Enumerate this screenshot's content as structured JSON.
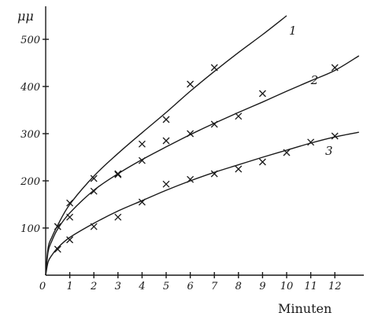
{
  "chart_data": {
    "type": "scatter",
    "title": "",
    "xlabel": "Minuten",
    "ylabel": "μμ",
    "xlim": [
      0,
      13.3
    ],
    "ylim": [
      0,
      560
    ],
    "x_ticks": [
      0,
      1,
      2,
      3,
      4,
      5,
      6,
      7,
      8,
      9,
      10,
      11,
      12
    ],
    "y_ticks": [
      100,
      200,
      300,
      400,
      500
    ],
    "series": [
      {
        "name": "1",
        "points": [
          [
            0.5,
            103
          ],
          [
            1,
            153
          ],
          [
            2,
            205
          ],
          [
            3,
            215
          ],
          [
            4,
            278
          ],
          [
            5,
            330
          ],
          [
            6,
            405
          ],
          [
            7,
            440
          ]
        ],
        "curve": [
          [
            0,
            0
          ],
          [
            0.1,
            58
          ],
          [
            0.25,
            80
          ],
          [
            0.5,
            106
          ],
          [
            1,
            150
          ],
          [
            2,
            210
          ],
          [
            3,
            258
          ],
          [
            4,
            302
          ],
          [
            5,
            345
          ],
          [
            6,
            390
          ],
          [
            7,
            432
          ],
          [
            8,
            472
          ],
          [
            9,
            510
          ],
          [
            10,
            550
          ]
        ]
      },
      {
        "name": "2",
        "points": [
          [
            0.5,
            103
          ],
          [
            1,
            123
          ],
          [
            2,
            178
          ],
          [
            3,
            213
          ],
          [
            4,
            243
          ],
          [
            5,
            285
          ],
          [
            6,
            300
          ],
          [
            7,
            320
          ],
          [
            8,
            337
          ],
          [
            9,
            385
          ],
          [
            12,
            440
          ]
        ],
        "curve": [
          [
            0,
            0
          ],
          [
            0.1,
            50
          ],
          [
            0.25,
            72
          ],
          [
            0.5,
            98
          ],
          [
            1,
            132
          ],
          [
            2,
            180
          ],
          [
            3,
            215
          ],
          [
            4,
            245
          ],
          [
            5,
            272
          ],
          [
            6,
            298
          ],
          [
            7,
            322
          ],
          [
            8,
            345
          ],
          [
            9,
            367
          ],
          [
            10,
            390
          ],
          [
            11,
            412
          ],
          [
            12,
            434
          ],
          [
            13,
            465
          ]
        ]
      },
      {
        "name": "3",
        "points": [
          [
            0.5,
            55
          ],
          [
            1,
            75
          ],
          [
            2,
            103
          ],
          [
            3,
            123
          ],
          [
            4,
            155
          ],
          [
            5,
            193
          ],
          [
            6,
            203
          ],
          [
            7,
            215
          ],
          [
            8,
            225
          ],
          [
            9,
            240
          ],
          [
            10,
            260
          ],
          [
            11,
            282
          ],
          [
            12,
            295
          ]
        ],
        "curve": [
          [
            0,
            0
          ],
          [
            0.1,
            28
          ],
          [
            0.25,
            42
          ],
          [
            0.5,
            58
          ],
          [
            1,
            80
          ],
          [
            2,
            110
          ],
          [
            3,
            136
          ],
          [
            4,
            158
          ],
          [
            5,
            180
          ],
          [
            6,
            200
          ],
          [
            7,
            218
          ],
          [
            8,
            234
          ],
          [
            9,
            250
          ],
          [
            10,
            265
          ],
          [
            11,
            280
          ],
          [
            12,
            293
          ],
          [
            13,
            303
          ]
        ]
      }
    ]
  }
}
